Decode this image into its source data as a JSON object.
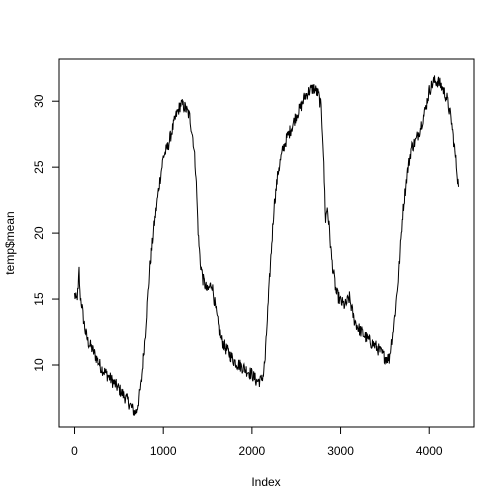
{
  "chart_data": {
    "type": "line",
    "title": "",
    "xlabel": "Index",
    "ylabel": "temp$mean",
    "xlim": [
      -175,
      4505
    ],
    "ylim": [
      5.3,
      33.2
    ],
    "x_ticks": [
      0,
      1000,
      2000,
      3000,
      4000
    ],
    "x_tick_labels": [
      "0",
      "1000",
      "2000",
      "3000",
      "4000"
    ],
    "y_ticks": [
      10,
      15,
      20,
      25,
      30
    ],
    "y_tick_labels": [
      "10",
      "15",
      "20",
      "25",
      "30"
    ],
    "grid": false,
    "legend": "none",
    "line_color": "#000000",
    "series": [
      {
        "x": [
          0,
          20,
          40,
          50,
          60,
          80,
          100,
          120,
          150,
          200,
          250,
          300,
          400,
          500,
          600,
          650,
          680,
          700,
          750,
          800,
          850,
          900,
          950,
          1000,
          1050,
          1100,
          1150,
          1200,
          1250,
          1300,
          1340,
          1370,
          1390,
          1400,
          1420,
          1450,
          1500,
          1550,
          1600,
          1650,
          1700,
          1800,
          1900,
          2000,
          2050,
          2100,
          2130,
          2150,
          2200,
          2250,
          2300,
          2350,
          2400,
          2450,
          2500,
          2550,
          2600,
          2650,
          2700,
          2750,
          2780,
          2800,
          2830,
          2850,
          2870,
          2900,
          2950,
          3000,
          3050,
          3100,
          3150,
          3200,
          3300,
          3400,
          3500,
          3550,
          3600,
          3650,
          3700,
          3750,
          3800,
          3850,
          3900,
          3950,
          4000,
          4050,
          4100,
          4150,
          4200,
          4250,
          4300,
          4330
        ],
        "y": [
          15.3,
          14.9,
          15.6,
          17.2,
          15.4,
          14.6,
          13.5,
          12.6,
          11.8,
          11.2,
          10.5,
          9.8,
          9.0,
          8.2,
          7.3,
          6.7,
          6.4,
          6.5,
          8.5,
          12.5,
          17.5,
          20.8,
          23.5,
          25.8,
          26.5,
          27.8,
          29.0,
          29.8,
          29.5,
          28.8,
          27.0,
          24.5,
          21.0,
          19.5,
          17.8,
          16.5,
          15.6,
          16.2,
          14.0,
          12.0,
          11.3,
          10.3,
          9.8,
          9.3,
          8.8,
          8.8,
          9.3,
          10.5,
          16.5,
          22.0,
          24.8,
          26.3,
          27.3,
          28.0,
          28.9,
          29.5,
          30.4,
          30.8,
          31.0,
          30.5,
          29.5,
          27.0,
          21.0,
          22.0,
          20.5,
          18.0,
          15.5,
          14.8,
          14.5,
          15.1,
          13.5,
          12.8,
          12.0,
          11.4,
          10.6,
          10.5,
          13.0,
          16.5,
          21.5,
          24.5,
          26.5,
          27.0,
          28.0,
          29.2,
          30.8,
          31.5,
          31.5,
          31.0,
          30.2,
          28.5,
          25.5,
          23.5
        ]
      }
    ]
  }
}
